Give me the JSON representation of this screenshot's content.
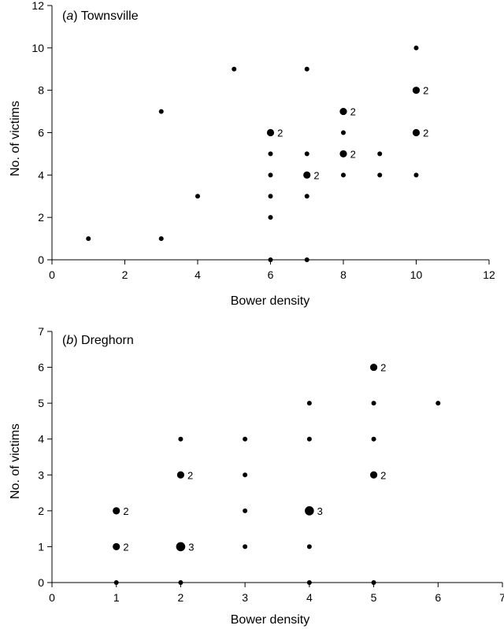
{
  "chart_data": [
    {
      "type": "scatter",
      "panel_letter": "a",
      "panel_name": "Townsville",
      "xlabel": "Bower density",
      "ylabel": "No. of victims",
      "xlim": [
        0,
        12
      ],
      "ylim": [
        0,
        12
      ],
      "xticks": [
        0,
        2,
        4,
        6,
        8,
        10,
        12
      ],
      "yticks": [
        0,
        2,
        4,
        6,
        8,
        10,
        12
      ],
      "points": [
        {
          "x": 1,
          "y": 1
        },
        {
          "x": 3,
          "y": 1
        },
        {
          "x": 3,
          "y": 7
        },
        {
          "x": 4,
          "y": 3
        },
        {
          "x": 5,
          "y": 9
        },
        {
          "x": 6,
          "y": 0
        },
        {
          "x": 6,
          "y": 2
        },
        {
          "x": 6,
          "y": 3
        },
        {
          "x": 6,
          "y": 4
        },
        {
          "x": 6,
          "y": 5
        },
        {
          "x": 6,
          "y": 6,
          "count": 2
        },
        {
          "x": 7,
          "y": 0
        },
        {
          "x": 7,
          "y": 3
        },
        {
          "x": 7,
          "y": 4,
          "count": 2
        },
        {
          "x": 7,
          "y": 5
        },
        {
          "x": 7,
          "y": 9
        },
        {
          "x": 8,
          "y": 4
        },
        {
          "x": 8,
          "y": 5,
          "count": 2
        },
        {
          "x": 8,
          "y": 6
        },
        {
          "x": 8,
          "y": 7,
          "count": 2
        },
        {
          "x": 9,
          "y": 4
        },
        {
          "x": 9,
          "y": 5
        },
        {
          "x": 10,
          "y": 4
        },
        {
          "x": 10,
          "y": 6,
          "count": 2
        },
        {
          "x": 10,
          "y": 8,
          "count": 2
        },
        {
          "x": 10,
          "y": 10
        }
      ]
    },
    {
      "type": "scatter",
      "panel_letter": "b",
      "panel_name": "Dreghorn",
      "xlabel": "Bower density",
      "ylabel": "No. of victims",
      "xlim": [
        0,
        7
      ],
      "ylim": [
        0,
        7
      ],
      "xticks": [
        0,
        1,
        2,
        3,
        4,
        5,
        6,
        7
      ],
      "yticks": [
        0,
        1,
        2,
        3,
        4,
        5,
        6,
        7
      ],
      "points": [
        {
          "x": 1,
          "y": 0
        },
        {
          "x": 1,
          "y": 1,
          "count": 2
        },
        {
          "x": 1,
          "y": 2,
          "count": 2
        },
        {
          "x": 2,
          "y": 0
        },
        {
          "x": 2,
          "y": 1,
          "count": 3
        },
        {
          "x": 2,
          "y": 3,
          "count": 2
        },
        {
          "x": 2,
          "y": 4
        },
        {
          "x": 3,
          "y": 1
        },
        {
          "x": 3,
          "y": 2
        },
        {
          "x": 3,
          "y": 3
        },
        {
          "x": 3,
          "y": 4
        },
        {
          "x": 4,
          "y": 0
        },
        {
          "x": 4,
          "y": 1
        },
        {
          "x": 4,
          "y": 2,
          "count": 3
        },
        {
          "x": 4,
          "y": 4
        },
        {
          "x": 4,
          "y": 5
        },
        {
          "x": 5,
          "y": 0
        },
        {
          "x": 5,
          "y": 3,
          "count": 2
        },
        {
          "x": 5,
          "y": 4
        },
        {
          "x": 5,
          "y": 5
        },
        {
          "x": 5,
          "y": 6,
          "count": 2
        },
        {
          "x": 6,
          "y": 5
        }
      ]
    }
  ]
}
